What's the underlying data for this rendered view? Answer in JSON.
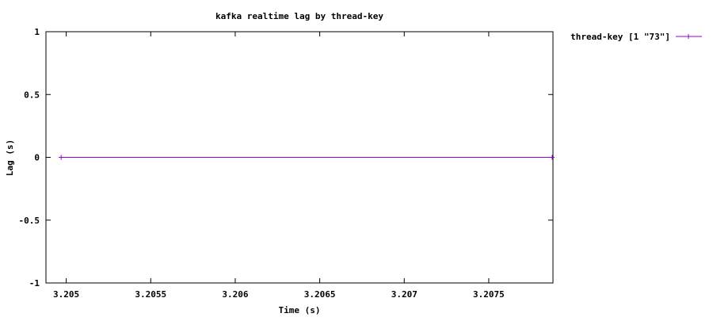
{
  "chart_data": {
    "type": "line",
    "title": "kafka realtime lag by thread-key",
    "xlabel": "Time (s)",
    "ylabel": "Lag (s)",
    "xlim": [
      3.20488,
      3.20788
    ],
    "ylim": [
      -1,
      1
    ],
    "x_ticks": [
      3.205,
      3.2055,
      3.206,
      3.2065,
      3.207,
      3.2075
    ],
    "x_tick_labels": [
      "3.205",
      "3.2055",
      "3.206",
      "3.2065",
      "3.207",
      "3.2075"
    ],
    "y_ticks": [
      1,
      0.5,
      0,
      -0.5,
      -1
    ],
    "y_tick_labels": [
      "1",
      "0.5",
      "0",
      "-0.5",
      "-1"
    ],
    "grid": false,
    "legend_position": "outside-top-right",
    "series": [
      {
        "name": "thread-key [1 \"73\"]",
        "color": "#9400d3",
        "marker": "plus",
        "x": [
          3.20497,
          3.20788
        ],
        "y": [
          0,
          0
        ]
      }
    ]
  }
}
